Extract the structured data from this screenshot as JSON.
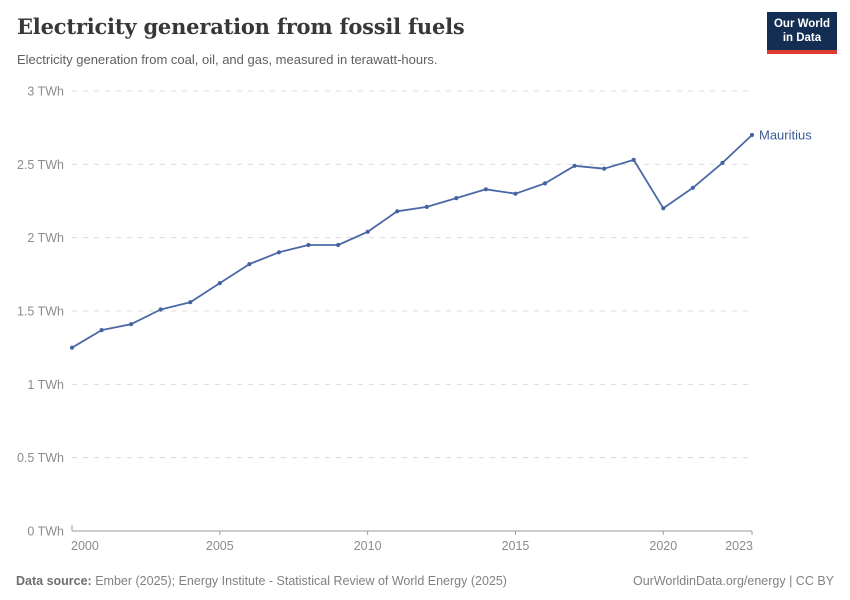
{
  "header": {
    "title": "Electricity generation from fossil fuels",
    "subtitle": "Electricity generation from coal, oil, and gas, measured in terawatt-hours.",
    "logo": {
      "line1": "Our World",
      "line2": "in Data"
    }
  },
  "chart_data": {
    "type": "line",
    "title": "Electricity generation from fossil fuels",
    "unit": "TWh",
    "entity": "Mauritius",
    "x": [
      2000,
      2001,
      2002,
      2003,
      2004,
      2005,
      2006,
      2007,
      2008,
      2009,
      2010,
      2011,
      2012,
      2013,
      2014,
      2015,
      2016,
      2017,
      2018,
      2019,
      2020,
      2021,
      2022,
      2023
    ],
    "series": [
      {
        "name": "Mauritius",
        "values": [
          1.25,
          1.37,
          1.41,
          1.51,
          1.56,
          1.69,
          1.82,
          1.9,
          1.95,
          1.95,
          2.04,
          2.18,
          2.21,
          2.27,
          2.33,
          2.3,
          2.37,
          2.49,
          2.47,
          2.53,
          2.2,
          2.34,
          2.51,
          2.7
        ]
      }
    ],
    "xlabel": "",
    "ylabel": "",
    "xlim": [
      2000,
      2023
    ],
    "ylim": [
      0,
      3
    ],
    "yticks": {
      "values": [
        0,
        0.5,
        1,
        1.5,
        2,
        2.5,
        3
      ],
      "labels": [
        "0 TWh",
        "0.5 TWh",
        "1 TWh",
        "1.5 TWh",
        "2 TWh",
        "2.5 TWh",
        "3 TWh"
      ]
    },
    "xticks": {
      "values": [
        2000,
        2005,
        2010,
        2015,
        2020,
        2023
      ],
      "labels": [
        "2000",
        "2005",
        "2010",
        "2015",
        "2020",
        "2023"
      ]
    },
    "grid": "horizontal dashed",
    "legend_position": "end-of-line label",
    "line_color": "#4b69a5",
    "marker_color": "#4463a0",
    "label_color": "#3d5c94",
    "gridline_color": "#dcdcdc",
    "axis_color": "#9e9e9e",
    "tick_label_color": "#8c8c8c"
  },
  "footer": {
    "source_label": "Data source:",
    "source_text": " Ember (2025); Energy Institute - Statistical Review of World Energy (2025)",
    "link_text": "OurWorldinData.org/energy | CC BY"
  }
}
